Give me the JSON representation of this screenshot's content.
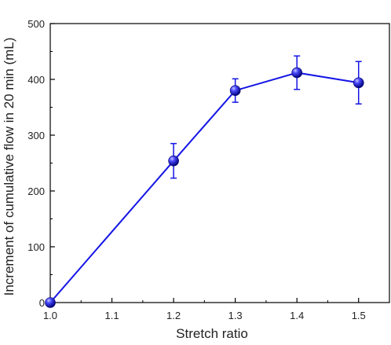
{
  "chart_data": {
    "type": "line",
    "xlabel": "Stretch ratio",
    "ylabel": "Increment of cumulative flow in 20 min (mL)",
    "xlim": [
      1.0,
      1.55
    ],
    "ylim": [
      0,
      500
    ],
    "x_ticks": [
      "1.0",
      "1.1",
      "1.2",
      "1.3",
      "1.4",
      "1.5"
    ],
    "y_ticks": [
      "0",
      "100",
      "200",
      "300",
      "400",
      "500"
    ],
    "grid": false,
    "series": [
      {
        "x": [
          1.0,
          1.2,
          1.3,
          1.4,
          1.5
        ],
        "y": [
          0,
          254,
          380,
          412,
          394
        ],
        "error": [
          0,
          31,
          21,
          30,
          38
        ],
        "color": "#1515e6",
        "marker": "sphere"
      }
    ]
  }
}
